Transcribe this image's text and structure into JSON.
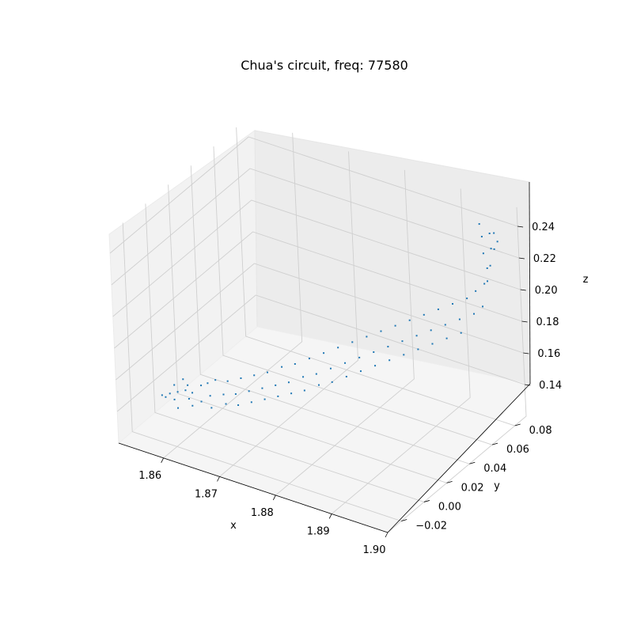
{
  "chart_data": {
    "type": "scatter",
    "projection": "3d",
    "title": "Chua's circuit, freq: 77580",
    "xlabel": "x",
    "ylabel": "y",
    "zlabel": "z",
    "xlim": [
      1.852,
      1.9
    ],
    "ylim": [
      -0.032,
      0.09
    ],
    "zlim": [
      0.12,
      0.252
    ],
    "xticks": [
      1.86,
      1.87,
      1.88,
      1.89,
      1.9
    ],
    "xtick_labels": [
      "1.86",
      "1.87",
      "1.88",
      "1.89",
      "1.90"
    ],
    "yticks": [
      -0.02,
      0.0,
      0.02,
      0.04,
      0.06,
      0.08
    ],
    "ytick_labels": [
      "−0.02",
      "0.00",
      "0.02",
      "0.04",
      "0.06",
      "0.08"
    ],
    "zticks": [
      0.14,
      0.16,
      0.18,
      0.2,
      0.22,
      0.24
    ],
    "ztick_labels": [
      "0.14",
      "0.16",
      "0.18",
      "0.20",
      "0.22",
      "0.24"
    ],
    "grid": true,
    "marker_color": "#1f77b4",
    "series": [
      {
        "points": [
          [
            1.853,
            0.002,
            0.131
          ],
          [
            1.854,
            0.004,
            0.132
          ],
          [
            1.855,
            0.006,
            0.133
          ],
          [
            1.856,
            0.008,
            0.134
          ],
          [
            1.853,
            0.005,
            0.128
          ],
          [
            1.855,
            0.003,
            0.13
          ],
          [
            1.857,
            0.006,
            0.131
          ],
          [
            1.856,
            0.01,
            0.136
          ],
          [
            1.854,
            0.008,
            0.135
          ],
          [
            1.858,
            0.004,
            0.129
          ],
          [
            1.857,
            0.009,
            0.133
          ],
          [
            1.855,
            0.011,
            0.138
          ],
          [
            1.859,
            0.007,
            0.131
          ],
          [
            1.858,
            0.012,
            0.137
          ],
          [
            1.856,
            0.001,
            0.127
          ],
          [
            1.86,
            0.01,
            0.134
          ],
          [
            1.859,
            0.013,
            0.139
          ],
          [
            1.861,
            0.006,
            0.13
          ],
          [
            1.862,
            0.012,
            0.136
          ],
          [
            1.86,
            0.015,
            0.141
          ],
          [
            1.863,
            0.009,
            0.133
          ],
          [
            1.862,
            0.016,
            0.142
          ],
          [
            1.864,
            0.013,
            0.138
          ],
          [
            1.865,
            0.01,
            0.134
          ],
          [
            1.864,
            0.018,
            0.145
          ],
          [
            1.866,
            0.015,
            0.141
          ],
          [
            1.867,
            0.012,
            0.137
          ],
          [
            1.866,
            0.02,
            0.148
          ],
          [
            1.868,
            0.017,
            0.144
          ],
          [
            1.869,
            0.014,
            0.14
          ],
          [
            1.868,
            0.022,
            0.151
          ],
          [
            1.87,
            0.019,
            0.147
          ],
          [
            1.871,
            0.016,
            0.143
          ],
          [
            1.87,
            0.025,
            0.155
          ],
          [
            1.872,
            0.021,
            0.15
          ],
          [
            1.873,
            0.018,
            0.146
          ],
          [
            1.872,
            0.027,
            0.158
          ],
          [
            1.874,
            0.024,
            0.154
          ],
          [
            1.875,
            0.02,
            0.149
          ],
          [
            1.874,
            0.03,
            0.162
          ],
          [
            1.876,
            0.026,
            0.157
          ],
          [
            1.877,
            0.023,
            0.153
          ],
          [
            1.876,
            0.033,
            0.166
          ],
          [
            1.878,
            0.029,
            0.161
          ],
          [
            1.879,
            0.025,
            0.156
          ],
          [
            1.878,
            0.036,
            0.17
          ],
          [
            1.88,
            0.032,
            0.165
          ],
          [
            1.881,
            0.028,
            0.16
          ],
          [
            1.88,
            0.039,
            0.174
          ],
          [
            1.882,
            0.035,
            0.169
          ],
          [
            1.883,
            0.031,
            0.164
          ],
          [
            1.882,
            0.042,
            0.178
          ],
          [
            1.884,
            0.038,
            0.173
          ],
          [
            1.885,
            0.034,
            0.168
          ],
          [
            1.884,
            0.045,
            0.182
          ],
          [
            1.886,
            0.041,
            0.177
          ],
          [
            1.887,
            0.037,
            0.172
          ],
          [
            1.886,
            0.048,
            0.186
          ],
          [
            1.888,
            0.044,
            0.181
          ],
          [
            1.889,
            0.04,
            0.176
          ],
          [
            1.888,
            0.051,
            0.19
          ],
          [
            1.89,
            0.047,
            0.185
          ],
          [
            1.891,
            0.043,
            0.18
          ],
          [
            1.89,
            0.054,
            0.194
          ],
          [
            1.892,
            0.05,
            0.189
          ],
          [
            1.893,
            0.046,
            0.184
          ],
          [
            1.892,
            0.057,
            0.198
          ],
          [
            1.894,
            0.053,
            0.193
          ],
          [
            1.895,
            0.049,
            0.188
          ],
          [
            1.894,
            0.06,
            0.202
          ],
          [
            1.896,
            0.056,
            0.197
          ],
          [
            1.897,
            0.052,
            0.192
          ],
          [
            1.896,
            0.063,
            0.206
          ],
          [
            1.898,
            0.059,
            0.201
          ],
          [
            1.897,
            0.066,
            0.21
          ],
          [
            1.899,
            0.062,
            0.205
          ],
          [
            1.898,
            0.069,
            0.214
          ],
          [
            1.899,
            0.067,
            0.218
          ],
          [
            1.898,
            0.072,
            0.222
          ],
          [
            1.899,
            0.07,
            0.226
          ],
          [
            1.897,
            0.074,
            0.229
          ],
          [
            1.898,
            0.076,
            0.232
          ],
          [
            1.899,
            0.074,
            0.234
          ],
          [
            1.896,
            0.078,
            0.236
          ],
          [
            1.897,
            0.08,
            0.238
          ],
          [
            1.898,
            0.079,
            0.24
          ],
          [
            1.899,
            0.077,
            0.237
          ],
          [
            1.895,
            0.081,
            0.241
          ]
        ]
      }
    ]
  }
}
